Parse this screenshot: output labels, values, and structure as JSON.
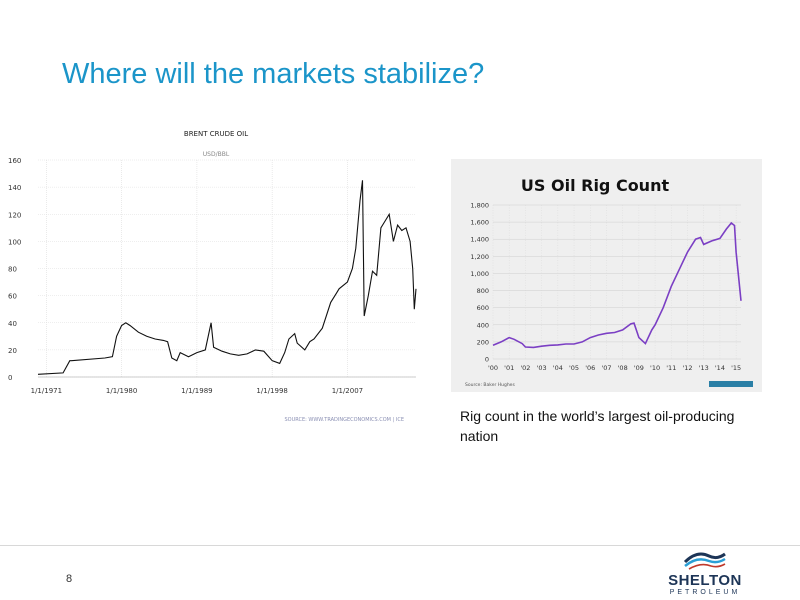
{
  "slide": {
    "title": "Where will the markets stabilize?",
    "caption": "Rig count in the world’s largest oil-producing nation",
    "page_number": "8"
  },
  "logo": {
    "name": "SHELTON",
    "sub": "PETROLEUM",
    "colors": [
      "#1d3557",
      "#2a9fd6",
      "#c0392b"
    ]
  },
  "chart_data": [
    {
      "type": "line",
      "title": "BRENT CRUDE OIL",
      "subtitle": "USD/BBL",
      "source": "SOURCE: WWW.TRADINGECONOMICS.COM | ICE",
      "x_ticks": [
        "1/1/1971",
        "1/1/1980",
        "1/1/1989",
        "1/1/1998",
        "1/1/2007"
      ],
      "x_tick_years": [
        1971,
        1980,
        1989,
        1998,
        2007
      ],
      "xlim": [
        1970,
        2015.2
      ],
      "ylim": [
        0,
        160
      ],
      "y_ticks": [
        0,
        20,
        40,
        60,
        80,
        100,
        120,
        140,
        160
      ],
      "grid": true,
      "color": "#111111",
      "x": [
        1970,
        1973,
        1973.8,
        1974,
        1978,
        1978.9,
        1979.4,
        1980,
        1980.5,
        1981,
        1982,
        1983,
        1984,
        1985,
        1985.5,
        1986,
        1986.6,
        1987,
        1988,
        1989,
        1990,
        1990.7,
        1991,
        1992,
        1993,
        1994,
        1995,
        1996,
        1997,
        1998,
        1998.9,
        1999.5,
        2000,
        2000.7,
        2001,
        2001.9,
        2002.5,
        2003,
        2004,
        2005,
        2005.7,
        2006,
        2007,
        2007.6,
        2008,
        2008.5,
        2008.8,
        2009,
        2009.5,
        2010,
        2010.5,
        2011,
        2011.5,
        2012,
        2012.5,
        2013,
        2013.5,
        2014,
        2014.5,
        2014.8,
        2015,
        2015.2
      ],
      "y": [
        2,
        3,
        12,
        12,
        14,
        15,
        30,
        38,
        40,
        38,
        33,
        30,
        28,
        27,
        26,
        14,
        12,
        18,
        15,
        18,
        20,
        40,
        22,
        19,
        17,
        16,
        17,
        20,
        19,
        12,
        10,
        18,
        28,
        32,
        25,
        20,
        26,
        28,
        36,
        55,
        62,
        65,
        70,
        80,
        95,
        130,
        145,
        45,
        60,
        78,
        75,
        110,
        115,
        120,
        100,
        112,
        108,
        110,
        100,
        80,
        50,
        65
      ]
    },
    {
      "type": "line",
      "title": "US Oil Rig Count",
      "source": "Source: Baker Hughes",
      "x_ticks": [
        "'00",
        "'01",
        "'02",
        "'03",
        "'04",
        "'05",
        "'06",
        "'07",
        "'08",
        "'09",
        "'10",
        "'11",
        "'12",
        "'13",
        "'14",
        "'15"
      ],
      "xlim": [
        2000,
        2015.3
      ],
      "ylim": [
        0,
        1800
      ],
      "y_ticks": [
        "0",
        "200",
        "400",
        "600",
        "800",
        "1,000",
        "1,200",
        "1,400",
        "1,600",
        "1,800"
      ],
      "grid": true,
      "color": "#7b3fc4",
      "x": [
        2000,
        2000.5,
        2001,
        2001.3,
        2001.8,
        2002,
        2002.5,
        2003,
        2003.5,
        2004,
        2004.5,
        2005,
        2005.5,
        2006,
        2006.5,
        2007,
        2007.5,
        2008,
        2008.5,
        2008.7,
        2009,
        2009.4,
        2009.8,
        2010,
        2010.5,
        2011,
        2011.5,
        2012,
        2012.5,
        2012.8,
        2013,
        2013.5,
        2014,
        2014.4,
        2014.7,
        2014.9,
        2015,
        2015.3
      ],
      "y": [
        160,
        200,
        250,
        230,
        180,
        140,
        135,
        150,
        160,
        165,
        175,
        175,
        200,
        250,
        280,
        300,
        310,
        340,
        410,
        420,
        250,
        180,
        340,
        400,
        600,
        850,
        1050,
        1250,
        1400,
        1420,
        1340,
        1380,
        1410,
        1520,
        1590,
        1560,
        1250,
        680
      ]
    }
  ]
}
